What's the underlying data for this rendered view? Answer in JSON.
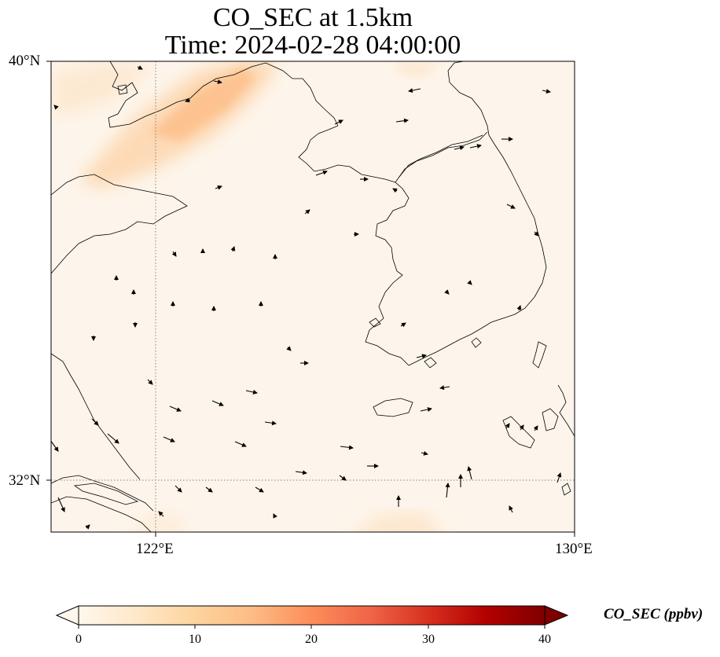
{
  "title": {
    "line1": "CO_SEC at 1.5km",
    "line2": "Time: 2024-02-28 04:00:00"
  },
  "map": {
    "lat_labels": [
      "40°N",
      "32°N"
    ],
    "lon_labels": [
      "122°E",
      "130°E"
    ],
    "gridline_style": "dotted grey",
    "background_color": "#fdf5eb",
    "plume_color": "#fdbb84",
    "coastline_color": "#000000"
  },
  "colorbar": {
    "label": "CO_SEC (ppbv)",
    "ticks": [
      "0",
      "10",
      "20",
      "30",
      "40"
    ],
    "range": [
      0,
      40
    ],
    "colormap": "OrRd",
    "extend": "both",
    "stops": [
      "#fff7ec",
      "#fee8c8",
      "#fdd49e",
      "#fdbb84",
      "#fc8d59",
      "#ef6548",
      "#d7301f",
      "#b30000",
      "#7f0000"
    ]
  }
}
